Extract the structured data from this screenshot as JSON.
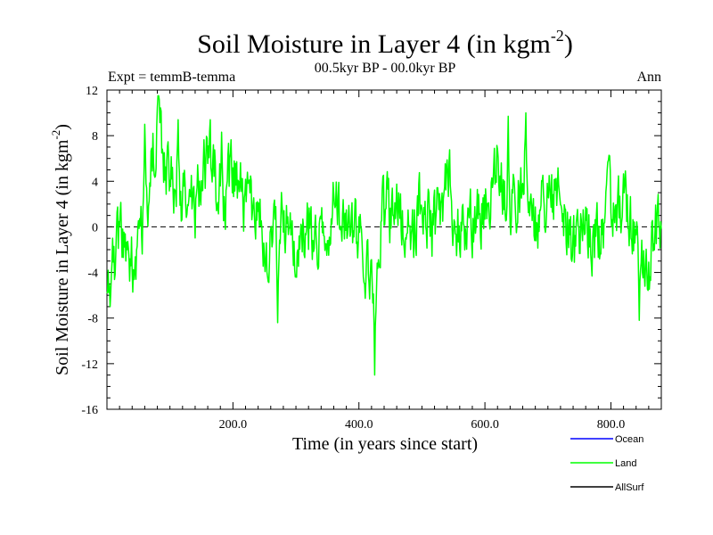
{
  "chart_data": {
    "type": "line",
    "title": "Soil Moisture in Layer 4 (in kgm",
    "title_superscript": "-2",
    "title_close": ")",
    "subtitle": "00.5kyr BP - 00.0kyr BP",
    "left_note": "Expt = temmB-temma",
    "right_note": "Ann",
    "xlabel": "Time (in years since start)",
    "ylabel": "Soil Moisture in Layer 4 (in kgm",
    "ylabel_superscript": "-2",
    "ylabel_close": ")",
    "xlim": [
      0,
      880
    ],
    "ylim": [
      -16,
      12
    ],
    "xticks": [
      200,
      400,
      600,
      800
    ],
    "xtick_labels": [
      "200.0",
      "400.0",
      "600.0",
      "800.0"
    ],
    "yticks": [
      -16,
      -12,
      -8,
      -4,
      0,
      4,
      8,
      12
    ],
    "ytick_labels": [
      "-16",
      "-12",
      "-8",
      "-4",
      "0",
      "4",
      "8",
      "12"
    ],
    "reference_line": 0,
    "legend": [
      "Ocean",
      "Land",
      "AllSurf"
    ],
    "legend_colors": [
      "#0000ff",
      "#00ff00",
      "#000000"
    ],
    "legend_position": "bottom-right, below plot",
    "series": [
      {
        "name": "Land",
        "color": "#00ff00",
        "x": [
          0,
          20,
          40,
          60,
          80,
          100,
          120,
          140,
          160,
          180,
          200,
          220,
          240,
          260,
          280,
          300,
          320,
          340,
          360,
          380,
          400,
          420,
          440,
          460,
          480,
          500,
          520,
          540,
          560,
          580,
          600,
          620,
          640,
          660,
          680,
          700,
          720,
          740,
          760,
          780,
          800,
          820,
          840,
          860,
          880
        ],
        "values": [
          -6,
          -1,
          -3,
          1,
          9,
          4,
          2,
          2,
          6,
          3,
          4,
          2,
          0,
          -2,
          1,
          -3,
          0,
          -1,
          2,
          -1,
          0,
          -5,
          1,
          2,
          -1,
          2,
          0,
          4,
          -1,
          1,
          2,
          6,
          2,
          4,
          1,
          2,
          3,
          -2,
          0,
          -1,
          2,
          2,
          0,
          -3,
          1
        ],
        "extremes": [
          {
            "x": 5,
            "y": -7
          },
          {
            "x": 60,
            "y": 9
          },
          {
            "x": 113,
            "y": 9.4
          },
          {
            "x": 182,
            "y": 8.3
          },
          {
            "x": 271,
            "y": -8.4
          },
          {
            "x": 425,
            "y": -13
          },
          {
            "x": 637,
            "y": 9.7
          },
          {
            "x": 665,
            "y": 10
          },
          {
            "x": 845,
            "y": -8.2
          }
        ]
      },
      {
        "name": "Ocean",
        "color": "#0000ff",
        "x": [],
        "values": []
      },
      {
        "name": "AllSurf",
        "color": "#000000",
        "x": [],
        "values": []
      }
    ]
  }
}
